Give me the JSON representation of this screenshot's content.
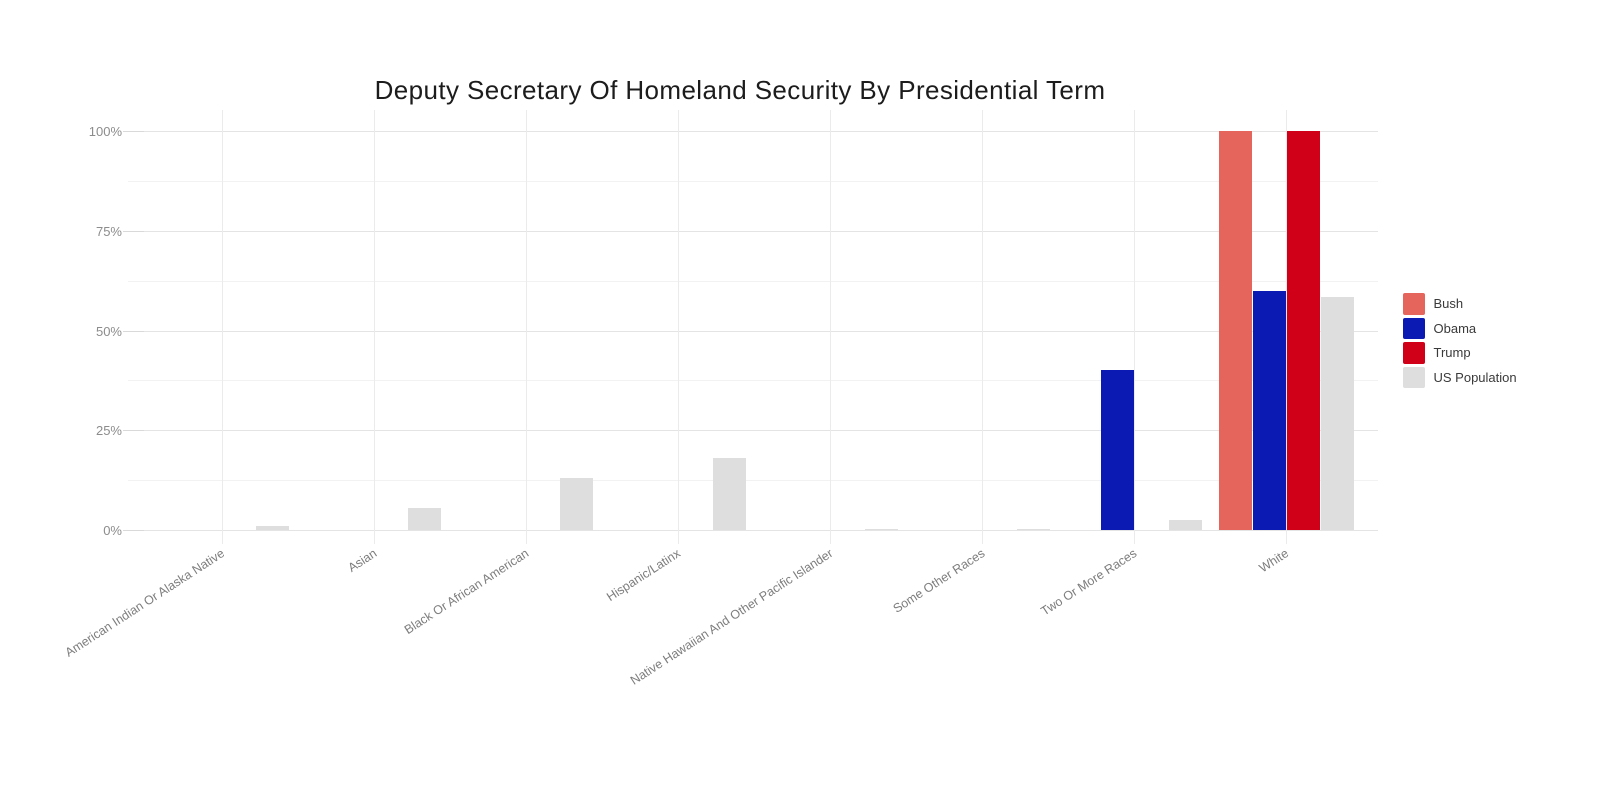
{
  "title": "Deputy Secretary Of Homeland Security By Presidential Term",
  "chart_data": {
    "type": "bar",
    "title": "Deputy Secretary Of Homeland Security By Presidential Term",
    "xlabel": "",
    "ylabel": "",
    "ylim": [
      0,
      100
    ],
    "grid": true,
    "legend_position": "right",
    "categories": [
      "American Indian Or Alaska Native",
      "Asian",
      "Black Or African American",
      "Hispanic/Latinx",
      "Native Hawaiian And Other Pacific Islander",
      "Some Other Races",
      "Two Or More Races",
      "White"
    ],
    "series": [
      {
        "name": "Bush",
        "color": "#e5645c",
        "values": [
          0,
          0,
          0,
          0,
          0,
          0,
          0,
          100
        ]
      },
      {
        "name": "Obama",
        "color": "#0b1ab3",
        "values": [
          0,
          0,
          0,
          0,
          0,
          0,
          40,
          60
        ]
      },
      {
        "name": "Trump",
        "color": "#d10019",
        "values": [
          0,
          0,
          0,
          0,
          0,
          0,
          0,
          100
        ]
      },
      {
        "name": "US Population",
        "color": "#dedede",
        "values": [
          1,
          5.5,
          13,
          18,
          0.2,
          0.3,
          2.5,
          58.5
        ]
      }
    ],
    "y_axis": {
      "major_ticks": [
        {
          "value": 0,
          "label": "0%"
        },
        {
          "value": 25,
          "label": "25%"
        },
        {
          "value": 50,
          "label": "50%"
        },
        {
          "value": 75,
          "label": "75%"
        },
        {
          "value": 100,
          "label": "100%"
        }
      ],
      "minor_ticks": [
        12.5,
        37.5,
        62.5,
        87.5
      ]
    }
  }
}
